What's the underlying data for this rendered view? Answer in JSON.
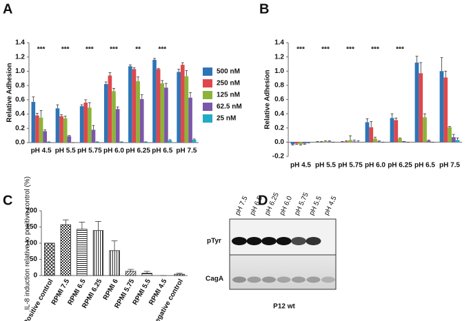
{
  "chart_data": [
    {
      "type": "grouped_bar",
      "label": "A",
      "y_label": "Relative Adhesion",
      "categories": [
        "pH 4.5",
        "pH 5.5",
        "pH 5.75",
        "pH 6.0",
        "pH 6.25",
        "pH 6.5",
        "pH 7.5"
      ],
      "significance": [
        "***",
        "***",
        "***",
        "***",
        "**",
        "***",
        null
      ],
      "series": [
        {
          "name": "500 nM",
          "color": "#2e75b6",
          "values": [
            0.57,
            0.48,
            0.51,
            0.82,
            1.07,
            1.16,
            0.99
          ],
          "errors": [
            0.07,
            0.05,
            0.02,
            0.03,
            0.02,
            0.02,
            0.04
          ]
        },
        {
          "name": "250 nM",
          "color": "#e0474c",
          "values": [
            0.38,
            0.37,
            0.56,
            0.94,
            1.03,
            1.03,
            1.09
          ],
          "errors": [
            0.03,
            0.02,
            0.04,
            0.04,
            0.02,
            0.01,
            0.03
          ]
        },
        {
          "name": "125 nM",
          "color": "#8db33a",
          "values": [
            0.35,
            0.34,
            0.49,
            0.72,
            0.86,
            0.83,
            0.93
          ],
          "errors": [
            0.1,
            0.03,
            0.07,
            0.04,
            0.06,
            0.04,
            0.08
          ]
        },
        {
          "name": "62.5 nM",
          "color": "#7b57a8",
          "values": [
            0.16,
            0.09,
            0.18,
            0.47,
            0.61,
            0.77,
            0.63
          ],
          "errors": [
            0.02,
            0.01,
            0.06,
            0.03,
            0.06,
            0.06,
            0.07
          ]
        },
        {
          "name": "25 nM",
          "color": "#22aac6",
          "values": [
            0.01,
            0.0,
            0.01,
            0.01,
            0.01,
            0.03,
            0.04
          ],
          "errors": [
            0,
            0,
            0,
            0,
            0,
            0.01,
            0.01
          ]
        }
      ],
      "ylim": [
        0,
        1.4
      ],
      "yticks": [
        {
          "value": 0,
          "label": "0.0"
        },
        0.2,
        0.4,
        0.6,
        0.8,
        {
          "value": 1,
          "label": "1.0"
        },
        1.2,
        1.4
      ],
      "legend": "right"
    },
    {
      "type": "grouped_bar",
      "label": "B",
      "y_label": "Relative Adhesion",
      "categories": [
        "pH 4.5",
        "pH 5.5",
        "pH 5.75",
        "pH 6.0",
        "pH 6.25",
        "pH 6.5",
        "pH 7.5"
      ],
      "significance": [
        "***",
        "***",
        "***",
        "***",
        "***",
        null,
        null
      ],
      "series": [
        {
          "color": "#2e75b6",
          "values": [
            -0.03,
            0.0,
            0.0,
            0.28,
            0.34,
            1.12,
            1.0
          ],
          "errors": [
            0.01,
            0.01,
            0.01,
            0.05,
            0.06,
            0.09,
            0.19
          ]
        },
        {
          "color": "#e0474c",
          "values": [
            -0.02,
            0.0,
            0.01,
            0.21,
            0.31,
            0.97,
            0.91
          ],
          "errors": [
            0.01,
            0.01,
            0.01,
            0.08,
            0.03,
            0.15,
            0.09
          ]
        },
        {
          "color": "#8db33a",
          "values": [
            -0.03,
            0.01,
            0.03,
            0.05,
            0.05,
            0.35,
            0.21
          ],
          "errors": [
            0.01,
            0.01,
            0.06,
            0.02,
            0.01,
            0.05,
            0.01
          ]
        },
        {
          "color": "#7b57a8",
          "values": [
            -0.02,
            0.01,
            0.01,
            0.01,
            0.01,
            0.02,
            0.07
          ],
          "errors": [
            0.01,
            0.01,
            0.02,
            0.01,
            0,
            0.01,
            0.04
          ]
        },
        {
          "color": "#22aac6",
          "values": [
            -0.01,
            0.0,
            0.0,
            0.0,
            0.0,
            0.0,
            0.03
          ],
          "errors": [
            0,
            0,
            0.02,
            0,
            0,
            0,
            0.03
          ]
        }
      ],
      "ylim": [
        -0.2,
        1.4
      ],
      "yticks": [
        -0.2,
        {
          "value": 0,
          "label": "0.0"
        },
        0.2,
        0.4,
        0.6,
        0.8,
        {
          "value": 1,
          "label": "1.0"
        },
        1.2,
        1.4
      ]
    },
    {
      "type": "pattern_bar",
      "label": "C",
      "y_label": "IL-8 induction relative to positive control (%)",
      "categories": [
        "Positive control",
        "RPMI 7.5",
        "RPMI 6.5",
        "RPMI 6.25",
        "RPMI 6",
        "RPMI 5.75",
        "RPMI 5.5",
        "RPMI 4.5",
        "Negative control"
      ],
      "values": [
        100,
        157,
        143,
        139,
        77,
        13,
        7,
        0,
        4
      ],
      "errors": [
        0,
        15,
        22,
        28,
        30,
        6,
        6,
        0,
        3
      ],
      "patterns": [
        "crosshatch",
        "checker",
        "horizontal",
        "vertical",
        "vertical",
        "diagonal",
        "horizontal",
        "none",
        "diagonal"
      ],
      "ylim": [
        0,
        200
      ],
      "yticks": [
        0,
        50,
        100,
        150,
        200
      ]
    }
  ],
  "blot": {
    "label": "D",
    "lanes": [
      "pH 7.5",
      "pH 6.5",
      "pH 6.25",
      "pH 6.0",
      "pH 5.75",
      "pH 5.5",
      "pH 4.5"
    ],
    "rows": [
      "pTyr",
      "CagA"
    ],
    "caption": "P12 wt"
  }
}
